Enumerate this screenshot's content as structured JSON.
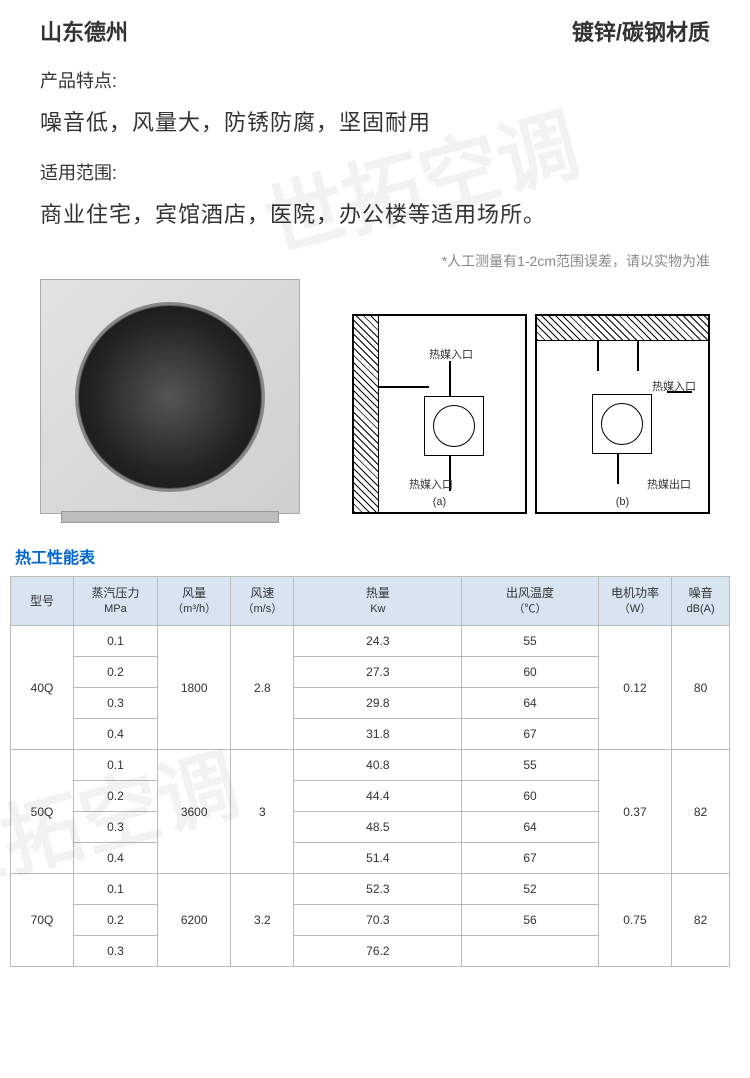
{
  "header": {
    "location": "山东德州",
    "material": "镀锌/碳钢材质"
  },
  "features": {
    "label": "产品特点:",
    "text": "噪音低，风量大，防锈防腐，坚固耐用"
  },
  "scope": {
    "label": "适用范围:",
    "text": "商业住宅，宾馆酒店，医院，办公楼等适用场所。"
  },
  "measure_note": "*人工测量有1-2cm范围误差，请以实物为准",
  "diagram": {
    "inlet_a": "热媒入口",
    "inlet_b": "热媒入口",
    "outlet_a": "热媒入口",
    "outlet_b": "热媒出口",
    "sub_a": "(a)",
    "sub_b": "(b)"
  },
  "table": {
    "title": "热工性能表",
    "columns": {
      "model": "型号",
      "pressure": "蒸汽压力",
      "pressure_unit": "MPa",
      "airflow": "风量",
      "airflow_unit": "（m³/h）",
      "speed": "风速",
      "speed_unit": "（m/s）",
      "heat": "热量",
      "heat_unit": "Kw",
      "temp": "出风温度",
      "temp_unit": "（℃）",
      "power": "电机功率",
      "power_unit": "（W）",
      "noise": "噪音",
      "noise_unit": "dB(A)"
    },
    "groups": [
      {
        "model": "40Q",
        "airflow": "1800",
        "speed": "2.8",
        "power": "0.12",
        "noise": "80",
        "rows": [
          {
            "pressure": "0.1",
            "heat": "24.3",
            "temp": "55"
          },
          {
            "pressure": "0.2",
            "heat": "27.3",
            "temp": "60"
          },
          {
            "pressure": "0.3",
            "heat": "29.8",
            "temp": "64"
          },
          {
            "pressure": "0.4",
            "heat": "31.8",
            "temp": "67"
          }
        ]
      },
      {
        "model": "50Q",
        "airflow": "3600",
        "speed": "3",
        "power": "0.37",
        "noise": "82",
        "rows": [
          {
            "pressure": "0.1",
            "heat": "40.8",
            "temp": "55"
          },
          {
            "pressure": "0.2",
            "heat": "44.4",
            "temp": "60"
          },
          {
            "pressure": "0.3",
            "heat": "48.5",
            "temp": "64"
          },
          {
            "pressure": "0.4",
            "heat": "51.4",
            "temp": "67"
          }
        ]
      },
      {
        "model": "70Q",
        "airflow": "6200",
        "speed": "3.2",
        "power": "0.75",
        "noise": "82",
        "rows": [
          {
            "pressure": "0.1",
            "heat": "52.3",
            "temp": "52"
          },
          {
            "pressure": "0.2",
            "heat": "70.3",
            "temp": "56"
          },
          {
            "pressure": "0.3",
            "heat": "76.2",
            "temp": ""
          }
        ]
      }
    ],
    "header_bg": "#d8e4f0",
    "border_color": "#bbbbbb"
  },
  "watermark_text": "世拓空调"
}
